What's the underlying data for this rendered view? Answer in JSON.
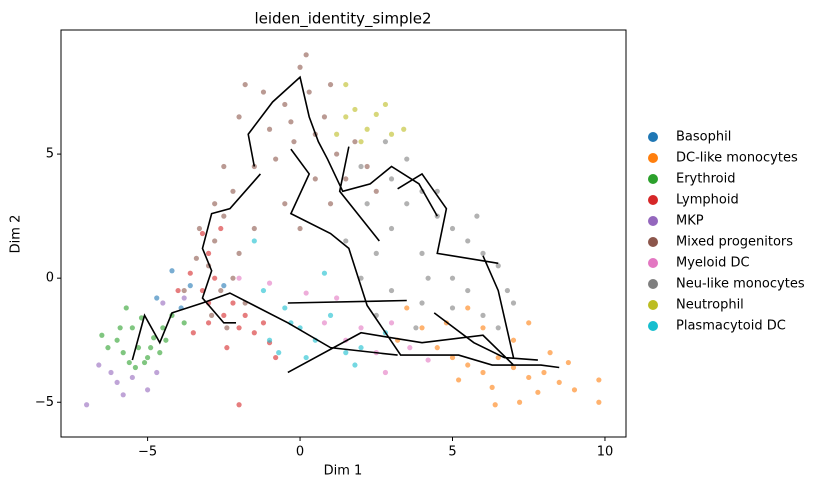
{
  "chart_data": {
    "type": "scatter",
    "title": "leiden_identity_simple2",
    "xlabel": "Dim 1",
    "ylabel": "Dim 2",
    "xlim": [
      -7.84,
      10.69
    ],
    "ylim": [
      -6.4,
      10.0
    ],
    "xticks": [
      {
        "value": -5,
        "label": "−5"
      },
      0,
      5,
      10
    ],
    "yticks": [
      {
        "value": -5,
        "label": "−5"
      },
      0,
      5
    ],
    "legend": "right",
    "series": [
      {
        "name": "Basophil",
        "color": "#1f77b4",
        "x": [
          -4.2,
          -3.6,
          -4.7,
          -3.9,
          -2.5
        ],
        "values": [
          0.3,
          -0.3,
          -0.8,
          -1.2,
          -0.3
        ]
      },
      {
        "name": "DC-like monocytes",
        "color": "#ff7f0e",
        "x": [
          4,
          4.5,
          5,
          5.5,
          6,
          6.5,
          7,
          7.5,
          8,
          8.5,
          9,
          9.8,
          9.8,
          7,
          6,
          5.5,
          7.5,
          8.2,
          6.3,
          7.8,
          6.4,
          3.2,
          3.5,
          4.8,
          5.2,
          8.8,
          7.2
        ],
        "values": [
          -2,
          -2.8,
          -3.2,
          -3.5,
          -3.8,
          -3.2,
          -3.6,
          -4,
          -3.8,
          -4.2,
          -4.5,
          -4.1,
          -5,
          -2.5,
          -2,
          -1.2,
          -1.8,
          -3,
          -4.4,
          -4.6,
          -5.1,
          -2.5,
          -1.2,
          -1.8,
          -4.1,
          -3.4,
          -5
        ]
      },
      {
        "name": "Erythroid",
        "color": "#2ca02c",
        "x": [
          -6,
          -5.8,
          -5.5,
          -5.3,
          -5,
          -4.8,
          -4.5,
          -4.2,
          -5.6,
          -6.3,
          -5.2,
          -4.9,
          -4.6,
          -5.9,
          -6.5,
          -5.4,
          -4.4,
          -5.7,
          -5.1,
          -3.8
        ],
        "values": [
          -2.5,
          -3,
          -2,
          -2.8,
          -3.2,
          -2.4,
          -2,
          -1.5,
          -3.4,
          -2.8,
          -1.6,
          -2.8,
          -3,
          -2,
          -2.3,
          -3.6,
          -2.5,
          -1.2,
          -3.4,
          -1.8
        ]
      },
      {
        "name": "Lymphoid",
        "color": "#d62728",
        "x": [
          -3,
          -2.8,
          -3.2,
          -2.5,
          -2,
          -1.5,
          -2.2,
          -3,
          -3.5,
          -1.8,
          -3.6,
          -2.6,
          -3,
          -1.2,
          -4,
          -2.4,
          -1,
          -3.2,
          -0.8,
          -2
        ],
        "values": [
          1,
          0,
          -0.5,
          -1.5,
          -2,
          -2.2,
          -1,
          -1.8,
          -2.2,
          -1.5,
          0.2,
          2,
          -1,
          -1.8,
          -0.5,
          -2.8,
          -2.6,
          1.8,
          -3.2,
          -5.1
        ]
      },
      {
        "name": "MKP",
        "color": "#9467bd",
        "x": [
          -6.2,
          -6,
          -5.5,
          -5,
          -5.8,
          -6.6,
          -4.7,
          -7,
          -3.8,
          -4.5
        ],
        "values": [
          -3.8,
          -4.2,
          -4,
          -4.5,
          -4.7,
          -3.5,
          -3.8,
          -5.1,
          -0.8,
          -1
        ]
      },
      {
        "name": "Mixed progenitors",
        "color": "#8c564b",
        "x": [
          -2.5,
          -2.8,
          -3,
          -2.2,
          -1.5,
          -1,
          -0.5,
          0,
          0.3,
          0.8,
          1.2,
          1.8,
          0.5,
          -0.5,
          -1.5,
          -2,
          -2.6,
          -2.9,
          -2.4,
          -0.2,
          -0.8,
          0.5,
          1.5,
          2.2,
          -1.2,
          0.2,
          -0.3,
          -2.8,
          -3.3,
          -3.4,
          -2.2,
          -1.8,
          1,
          2.5,
          0,
          -3.8,
          -2,
          -1.8,
          1,
          -2.5
        ],
        "values": [
          2.5,
          1.5,
          0.5,
          3.5,
          4.5,
          6,
          7,
          8.5,
          7.5,
          6.5,
          5,
          5.5,
          4,
          3,
          2,
          1,
          -0.5,
          -1.5,
          -2,
          5.5,
          4.8,
          5.8,
          4,
          4.5,
          7.5,
          9,
          6.3,
          3,
          2,
          0.8,
          0,
          -1,
          3,
          3.5,
          2,
          -0.5,
          6.5,
          7.8,
          7.8,
          4.5
        ]
      },
      {
        "name": "Myeloid DC",
        "color": "#e377c2",
        "x": [
          0.2,
          0.8,
          1.5,
          2,
          2.5,
          3,
          4.2,
          -1,
          2.8,
          1.2,
          3.6,
          -2
        ],
        "values": [
          -0.6,
          -1.8,
          -2.5,
          -2,
          -3,
          -1.8,
          -3.3,
          -0.2,
          -3.8,
          -0.8,
          -2.8,
          0
        ]
      },
      {
        "name": "Neu-like monocytes",
        "color": "#7f7f7f",
        "x": [
          2,
          3,
          3.5,
          4,
          4.5,
          5,
          5.5,
          6,
          6.5,
          5,
          4,
          3,
          2.5,
          2,
          3,
          4,
          5,
          6,
          6.8,
          7,
          4.5,
          3.5,
          2.8,
          5.8,
          3.8,
          2.5,
          1.5,
          6.5,
          4.2,
          5.5,
          2.2
        ],
        "values": [
          4.5,
          4,
          3,
          3.5,
          2.5,
          2,
          1.5,
          1,
          0.5,
          0,
          1,
          2,
          1,
          0,
          -0.5,
          -1,
          -1.2,
          -1.5,
          -0.5,
          -1,
          3.5,
          4.8,
          5.5,
          2.5,
          -2,
          -1.5,
          1.5,
          -2,
          0,
          -0.5,
          3
        ]
      },
      {
        "name": "Neutrophil",
        "color": "#bcbd22",
        "x": [
          1.5,
          1.8,
          2.2,
          2.5,
          2,
          3,
          1.2,
          2.8,
          3.4,
          1.5
        ],
        "values": [
          6.5,
          6.8,
          6,
          6.6,
          5.5,
          5.8,
          5.8,
          7,
          6,
          7.8
        ]
      },
      {
        "name": "Plasmacytoid DC",
        "color": "#17becf",
        "x": [
          -0.5,
          0,
          0.5,
          1,
          1.5,
          2,
          -1,
          0.2,
          -1.2,
          0.8,
          -0.3,
          1.8,
          -1.5,
          -0.7,
          2.8
        ],
        "values": [
          -1.2,
          -2,
          -2.5,
          -1.5,
          -3,
          -2.8,
          -2.5,
          -3.2,
          -0.5,
          0.2,
          -1.8,
          -3.5,
          1.5,
          -3,
          -2.2
        ]
      }
    ],
    "trajectory": {
      "color": "#000000",
      "x": [
        -1.5,
        -1.7,
        -0.9,
        0,
        0.3,
        0.6,
        0.9,
        1.4,
        2.3,
        3.0,
        3.9,
        4.5,
        null,
        1.6,
        1.3,
        2.6,
        null,
        -0.3,
        0.3,
        -0.3,
        1.0,
        1.6,
        2.2,
        3.3,
        5.2,
        6.3,
        7.9,
        8.5,
        null,
        -1.3,
        -2.3,
        -2.9,
        -3.2,
        -2.9,
        -3.2,
        -2.5,
        -2.1,
        null,
        -5.5,
        -5.1,
        -4.6,
        -4.2,
        -3.2,
        -2.3,
        -0.4,
        1.0,
        3.2,
        null,
        -0.4,
        2.0,
        4.0,
        6.0,
        7.0,
        null,
        -0.4,
        3.5,
        null,
        3.2,
        4.0,
        4.8,
        4.5,
        6.5,
        null,
        4.4,
        5.7,
        6.7,
        7.8,
        null,
        6.0,
        6.5,
        7.0
      ],
      "y": [
        4.5,
        5.8,
        7.1,
        8.1,
        6.5,
        5.5,
        4.8,
        3.5,
        3.8,
        4.5,
        3.8,
        2.5,
        null,
        5.3,
        3.5,
        1.5,
        null,
        5.2,
        4.2,
        2.6,
        1.8,
        1.2,
        -1.1,
        -3.1,
        -3.1,
        -3.5,
        -3.5,
        -3.6,
        null,
        4.2,
        2.8,
        2.6,
        1.2,
        0.3,
        -0.8,
        -1.8,
        -1.8,
        null,
        -3.3,
        -1.5,
        -2.6,
        -1.4,
        -1.0,
        -0.6,
        -1.8,
        -2.8,
        -3.1,
        null,
        -3.8,
        -2.2,
        -2.6,
        -2.3,
        -3.5,
        null,
        -1.0,
        -0.9,
        null,
        3.6,
        4.2,
        2.8,
        1.0,
        0.6,
        null,
        -1.4,
        -2.6,
        -3.2,
        -3.3,
        null,
        0.9,
        -0.5,
        -3.2
      ]
    }
  }
}
